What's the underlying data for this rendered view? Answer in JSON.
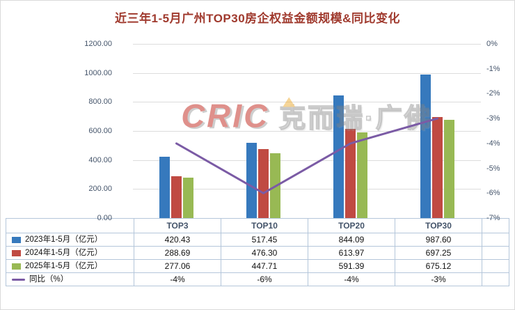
{
  "title": "近三年1-5月广州TOP30房企权益金额规模&同比变化",
  "palette": {
    "title_color": "#A03A2E",
    "bar_2023": "#3679BD",
    "bar_2024": "#C04A42",
    "bar_2025": "#98B954",
    "line_yoy": "#7B5BA5",
    "axis_text": "#44546A",
    "table_border": "#B4C6DA",
    "gridline": "#DCDCDC"
  },
  "watermark": {
    "brand": "CRIC",
    "text": "克而瑞·广佛"
  },
  "chart_data": {
    "type": "bar",
    "subtype": "grouped bars with overlaid line on secondary axis",
    "title": "近三年1-5月广州TOP30房企权益金额规模&同比变化",
    "categories": [
      "TOP3",
      "TOP10",
      "TOP20",
      "TOP30"
    ],
    "series": [
      {
        "name": "2023年1-5月（亿元）",
        "type": "bar",
        "color": "#3679BD",
        "axis": "left",
        "values": [
          420.43,
          517.45,
          844.09,
          987.6
        ]
      },
      {
        "name": "2024年1-5月（亿元）",
        "type": "bar",
        "color": "#C04A42",
        "axis": "left",
        "values": [
          288.69,
          476.3,
          613.97,
          697.25
        ]
      },
      {
        "name": "2025年1-5月（亿元）",
        "type": "bar",
        "color": "#98B954",
        "axis": "left",
        "values": [
          277.06,
          447.71,
          591.39,
          675.12
        ]
      },
      {
        "name": "同比（%）",
        "type": "line",
        "color": "#7B5BA5",
        "axis": "right",
        "values": [
          -4,
          -6,
          -4,
          -3
        ]
      }
    ],
    "left_axis": {
      "min": 0,
      "max": 1200,
      "step": 200,
      "labels": [
        "1200.00",
        "1000.00",
        "800.00",
        "600.00",
        "400.00",
        "200.00",
        "0.00"
      ]
    },
    "right_axis": {
      "min": -7,
      "max": 0,
      "step": -1,
      "labels": [
        "0%",
        "-1%",
        "-2%",
        "-3%",
        "-4%",
        "-5%",
        "-6%",
        "-7%"
      ]
    },
    "grid": true,
    "legend_position": "data-table"
  },
  "table": {
    "rows": [
      {
        "label": "2023年1-5月（亿元）",
        "marker": "bar",
        "color": "#3679BD",
        "values": [
          "420.43",
          "517.45",
          "844.09",
          "987.60"
        ]
      },
      {
        "label": "2024年1-5月（亿元）",
        "marker": "bar",
        "color": "#C04A42",
        "values": [
          "288.69",
          "476.30",
          "613.97",
          "697.25"
        ]
      },
      {
        "label": "2025年1-5月（亿元）",
        "marker": "bar",
        "color": "#98B954",
        "values": [
          "277.06",
          "447.71",
          "591.39",
          "675.12"
        ]
      },
      {
        "label": "同比（%）",
        "marker": "line",
        "color": "#7B5BA5",
        "values": [
          "-4%",
          "-6%",
          "-4%",
          "-3%"
        ]
      }
    ]
  }
}
